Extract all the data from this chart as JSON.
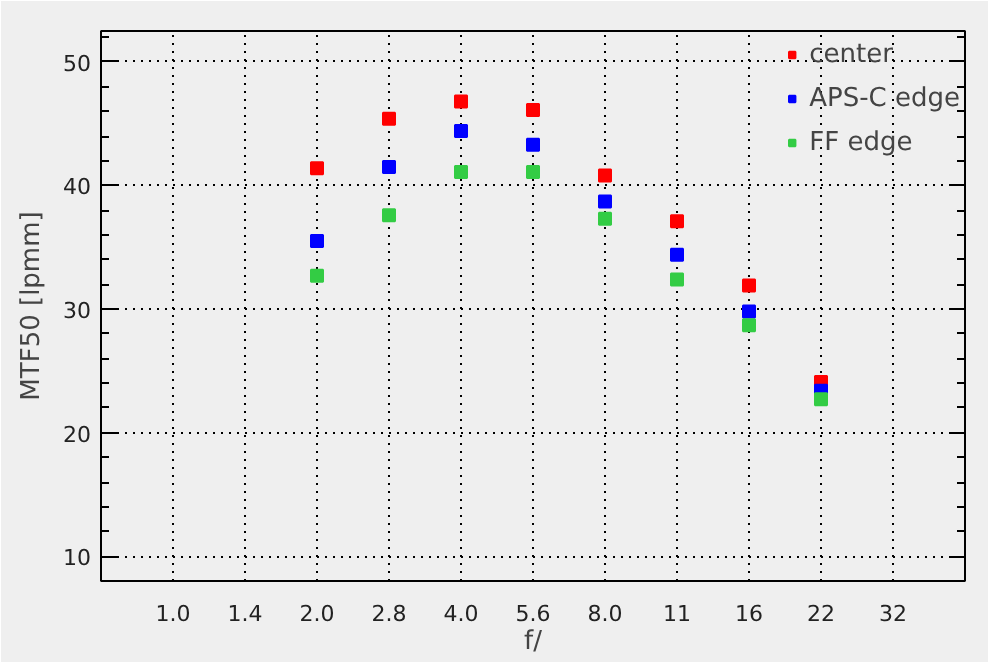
{
  "chart_data": {
    "type": "scatter",
    "xlabel": "f/",
    "ylabel": "MTF50 [lpmm]",
    "categories": [
      "1.0",
      "1.4",
      "2.0",
      "2.8",
      "4.0",
      "5.6",
      "8.0",
      "11",
      "16",
      "22",
      "32"
    ],
    "series": [
      {
        "name": "center",
        "color": "#ff0000",
        "values": [
          null,
          null,
          41.4,
          45.4,
          46.8,
          46.1,
          40.8,
          37.1,
          31.9,
          24.1,
          null
        ]
      },
      {
        "name": "APS-C edge",
        "color": "#0000ff",
        "values": [
          null,
          null,
          35.5,
          41.5,
          44.4,
          43.3,
          38.7,
          34.4,
          29.8,
          23.4,
          null
        ]
      },
      {
        "name": "FF edge",
        "color": "#33cc44",
        "values": [
          null,
          null,
          32.7,
          37.6,
          41.1,
          41.1,
          37.3,
          32.4,
          28.7,
          22.7,
          null
        ]
      }
    ],
    "ylim": [
      8,
      52.5
    ],
    "yticks": [
      10,
      20,
      30,
      40,
      50
    ],
    "grid": true,
    "legend": "top right",
    "marker": "square"
  }
}
